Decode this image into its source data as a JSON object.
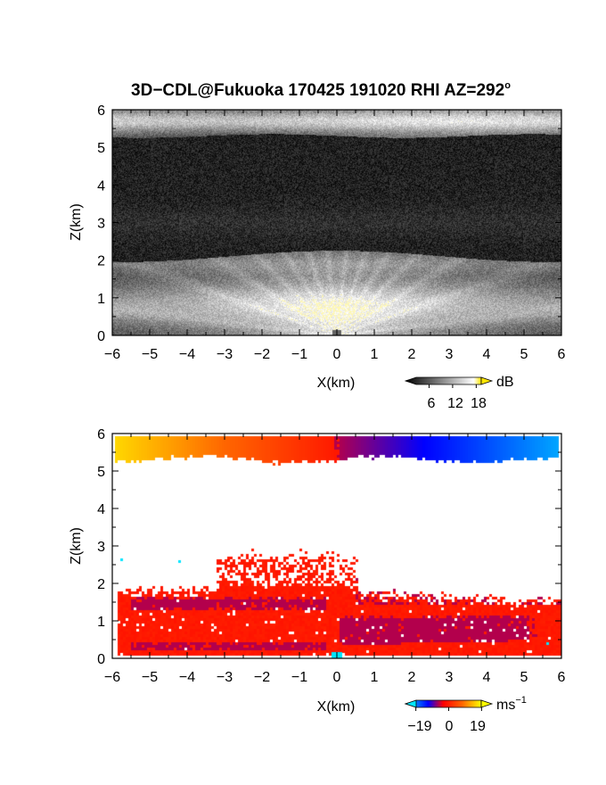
{
  "title": {
    "text": "3D−CDL@Fukuoka 170425 191020 RHI AZ=292",
    "deg": "o"
  },
  "chart_data": [
    {
      "type": "heatmap",
      "quantity": "backscatter",
      "xlabel": "X(km)",
      "ylabel": "Z(km)",
      "xlim": [
        -6,
        6
      ],
      "ylim": [
        0,
        6
      ],
      "x_ticks": [
        "−6",
        "−5",
        "−4",
        "−3",
        "−2",
        "−1",
        "0",
        "1",
        "2",
        "3",
        "4",
        "5",
        "6"
      ],
      "y_ticks": [
        "0",
        "1",
        "2",
        "3",
        "4",
        "5",
        "6"
      ],
      "colormap": "grayscale",
      "colorbar": {
        "unit": "dB",
        "tick_labels": [
          "6",
          "12",
          "18"
        ],
        "ticks": [
          6,
          12,
          18
        ],
        "range": [
          0,
          22
        ],
        "colors": [
          "#000000",
          "#ffffff",
          "#ffe600"
        ]
      },
      "layers": [
        {
          "name": "upper bright layer",
          "z_range": [
            5.3,
            6.0
          ],
          "x_range": [
            -6,
            6
          ],
          "level": "high"
        },
        {
          "name": "dark middle region",
          "z_range": [
            2.2,
            5.3
          ],
          "x_range": [
            -6,
            6
          ],
          "level": "low"
        },
        {
          "name": "boundary layer fan",
          "z_range": [
            0,
            2.1
          ],
          "x_range": [
            -6,
            6
          ],
          "level": "high",
          "max_near_x": 0
        }
      ]
    },
    {
      "type": "heatmap",
      "quantity": "doppler velocity",
      "xlabel": "X(km)",
      "ylabel": "Z(km)",
      "xlim": [
        -6,
        6
      ],
      "ylim": [
        0,
        6
      ],
      "x_ticks": [
        "−6",
        "−5",
        "−4",
        "−3",
        "−2",
        "−1",
        "0",
        "1",
        "2",
        "3",
        "4",
        "5",
        "6"
      ],
      "y_ticks": [
        "0",
        "1",
        "2",
        "3",
        "4",
        "5",
        "6"
      ],
      "colormap": "cyan-blue-red-yellow",
      "colorbar": {
        "unit": "ms",
        "unit_exp": "−1",
        "tick_labels": [
          "−19",
          "0",
          "19"
        ],
        "ticks": [
          -19,
          0,
          19
        ],
        "range": [
          -25,
          25
        ],
        "colors": [
          "#00e5ff",
          "#0000ff",
          "#ff0000",
          "#ffff00"
        ]
      },
      "layers": [
        {
          "name": "upper layer",
          "z_range": [
            5.3,
            5.95
          ],
          "velocity_at_x_minus6": 22,
          "velocity_at_x0": 3,
          "velocity_at_x6": -22
        },
        {
          "name": "top red region",
          "z_range": [
            1.1,
            2.8
          ],
          "x_range": [
            -3,
            0.5
          ],
          "velocity": 3
        },
        {
          "name": "upper blue band",
          "z_range": [
            1.3,
            1.6
          ],
          "x_range": [
            -5.5,
            -0.3
          ],
          "velocity": -3
        },
        {
          "name": "lower blue band",
          "z_range": [
            0.35,
            1.1
          ],
          "x_range": [
            0.05,
            5.4
          ],
          "velocity": -3
        },
        {
          "name": "near-surface blue strip",
          "z_range": [
            0.25,
            0.45
          ],
          "x_range": [
            -5.5,
            -0.3
          ],
          "velocity": -3
        },
        {
          "name": "background red",
          "z_range": [
            0.05,
            1.8
          ],
          "x_range": [
            -5.8,
            6
          ],
          "velocity": 3
        }
      ]
    }
  ]
}
